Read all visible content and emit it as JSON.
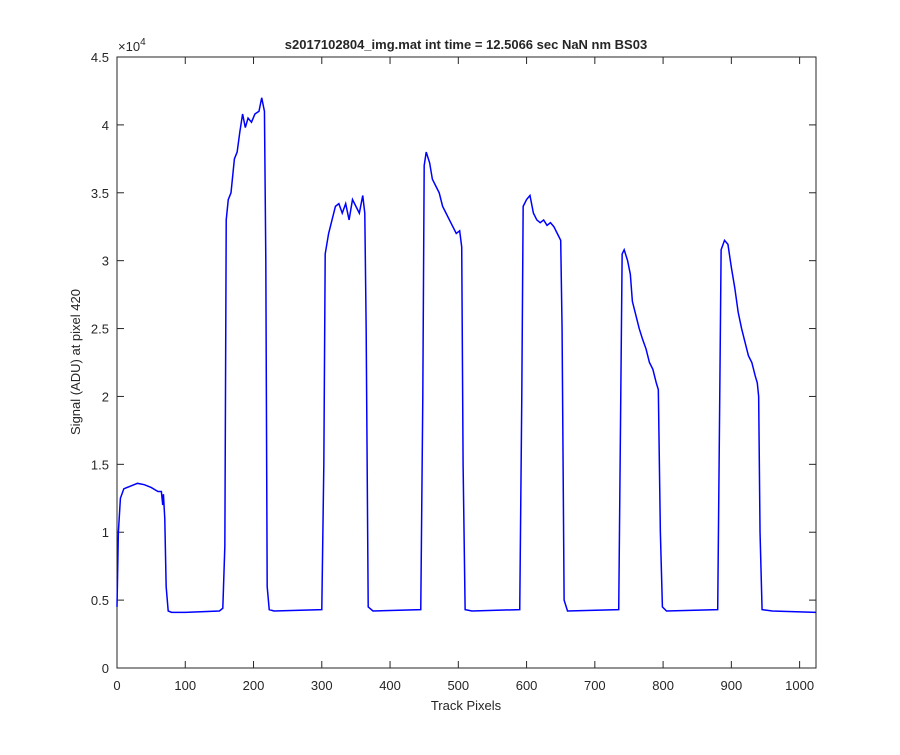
{
  "chart_data": {
    "type": "line",
    "title": "s2017102804_img.mat int time = 12.5066 sec  NaN nm BS03",
    "x_label": "Track Pixels",
    "y_label": "Signal (ADU) at pixel 420",
    "y_exponent": {
      "base": "×10",
      "power": "4"
    },
    "xlim": [
      0,
      1024
    ],
    "xticks": [
      0,
      100,
      200,
      300,
      400,
      500,
      600,
      700,
      800,
      900,
      1000
    ],
    "ylim": [
      0,
      4.5
    ],
    "yticks": [
      0,
      0.5,
      1,
      1.5,
      2,
      2.5,
      3,
      3.5,
      4,
      4.5
    ],
    "grid": false,
    "x": [
      0,
      2,
      5,
      10,
      20,
      30,
      40,
      50,
      60,
      65,
      67,
      68,
      70,
      72,
      75,
      80,
      100,
      150,
      155,
      158,
      160,
      163,
      167,
      172,
      176,
      180,
      184,
      188,
      192,
      197,
      202,
      208,
      212,
      216,
      218,
      220,
      223,
      230,
      300,
      303,
      305,
      310,
      315,
      320,
      325,
      330,
      335,
      340,
      345,
      350,
      355,
      360,
      363,
      365,
      368,
      375,
      445,
      448,
      450,
      453,
      458,
      462,
      467,
      472,
      477,
      482,
      487,
      492,
      497,
      502,
      505,
      507,
      510,
      520,
      590,
      593,
      595,
      600,
      605,
      610,
      615,
      620,
      625,
      630,
      635,
      640,
      645,
      650,
      652,
      655,
      660,
      735,
      738,
      740,
      743,
      748,
      752,
      755,
      760,
      765,
      770,
      775,
      780,
      785,
      790,
      793,
      796,
      799,
      805,
      880,
      883,
      885,
      890,
      895,
      900,
      905,
      910,
      915,
      920,
      925,
      930,
      935,
      938,
      940,
      942,
      945,
      960,
      1024
    ],
    "series": [
      {
        "name": "Signal",
        "color": "#0000ff",
        "values": [
          0.45,
          1.0,
          1.25,
          1.32,
          1.34,
          1.36,
          1.35,
          1.33,
          1.3,
          1.3,
          1.2,
          1.28,
          1.1,
          0.6,
          0.42,
          0.41,
          0.41,
          0.42,
          0.44,
          0.9,
          3.3,
          3.45,
          3.5,
          3.75,
          3.8,
          3.95,
          4.08,
          3.98,
          4.05,
          4.02,
          4.08,
          4.1,
          4.2,
          4.1,
          3.0,
          0.6,
          0.43,
          0.42,
          0.43,
          1.5,
          3.05,
          3.2,
          3.3,
          3.4,
          3.42,
          3.35,
          3.42,
          3.3,
          3.45,
          3.4,
          3.35,
          3.48,
          3.35,
          2.5,
          0.45,
          0.42,
          0.43,
          2.0,
          3.7,
          3.8,
          3.72,
          3.6,
          3.55,
          3.5,
          3.4,
          3.35,
          3.3,
          3.25,
          3.2,
          3.22,
          3.1,
          1.5,
          0.43,
          0.42,
          0.43,
          2.0,
          3.4,
          3.45,
          3.48,
          3.35,
          3.3,
          3.28,
          3.3,
          3.26,
          3.28,
          3.25,
          3.2,
          3.15,
          2.5,
          0.5,
          0.42,
          0.43,
          2.0,
          3.05,
          3.08,
          3.0,
          2.9,
          2.7,
          2.6,
          2.5,
          2.42,
          2.35,
          2.25,
          2.2,
          2.1,
          2.05,
          1.0,
          0.45,
          0.42,
          0.43,
          2.0,
          3.08,
          3.15,
          3.12,
          2.95,
          2.8,
          2.62,
          2.5,
          2.4,
          2.3,
          2.25,
          2.15,
          2.1,
          2.0,
          1.0,
          0.43,
          0.42,
          0.41
        ]
      }
    ]
  }
}
